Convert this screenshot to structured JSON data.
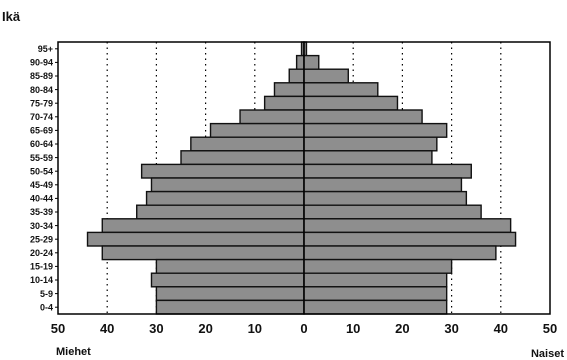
{
  "chart_data": {
    "type": "bar",
    "orientation": "horizontal-population-pyramid",
    "ylabel": "Ikä",
    "left_label": "Miehet",
    "right_label": "Naiset",
    "x_ticks": [
      "50",
      "40",
      "30",
      "20",
      "10",
      "0",
      "10",
      "20",
      "30",
      "40",
      "50"
    ],
    "xlim": [
      -50,
      50
    ],
    "grid": "vertical-dotted",
    "categories": [
      "95+",
      "90-94",
      "85-89",
      "80-84",
      "75-79",
      "70-74",
      "65-69",
      "60-64",
      "55-59",
      "50-54",
      "45-49",
      "40-44",
      "35-39",
      "30-34",
      "25-29",
      "20-24",
      "15-19",
      "10-14",
      "5-9",
      "0-4"
    ],
    "series": [
      {
        "side": "left",
        "values": [
          0.5,
          1.5,
          3,
          6,
          8,
          13,
          19,
          23,
          25,
          33,
          31,
          32,
          34,
          41,
          44,
          41,
          30,
          31,
          30,
          30
        ]
      },
      {
        "side": "right",
        "values": [
          0.5,
          3,
          9,
          15,
          19,
          24,
          29,
          27,
          26,
          34,
          32,
          33,
          36,
          42,
          43,
          39,
          30,
          29,
          29,
          29
        ]
      }
    ],
    "colors": {
      "bar_fill": "#8e8e8e",
      "bar_edge": "#111111",
      "grid": "#000000"
    }
  }
}
